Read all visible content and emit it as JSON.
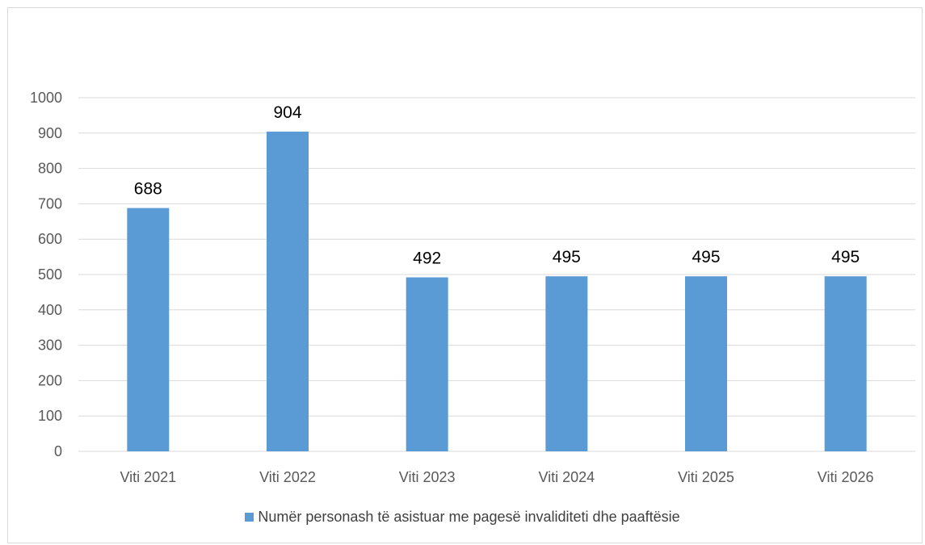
{
  "chart_data": {
    "type": "bar",
    "title": "",
    "xlabel": "",
    "ylabel": "",
    "categories": [
      "Viti 2021",
      "Viti 2022",
      "Viti 2023",
      "Viti 2024",
      "Viti 2025",
      "Viti 2026"
    ],
    "series": [
      {
        "name": "Numër personash të asistuar me pagesë invaliditeti dhe paaftësie",
        "values": [
          688,
          904,
          492,
          495,
          495,
          495
        ],
        "color": "#5b9bd5"
      }
    ],
    "data_labels": [
      "688",
      "904",
      "492",
      "495",
      "495",
      "495"
    ],
    "ylim": [
      0,
      1000
    ],
    "yticks": [
      0,
      100,
      200,
      300,
      400,
      500,
      600,
      700,
      800,
      900,
      1000
    ],
    "grid": true,
    "gridline_color": "#d9d9d9",
    "legend_position": "bottom"
  }
}
